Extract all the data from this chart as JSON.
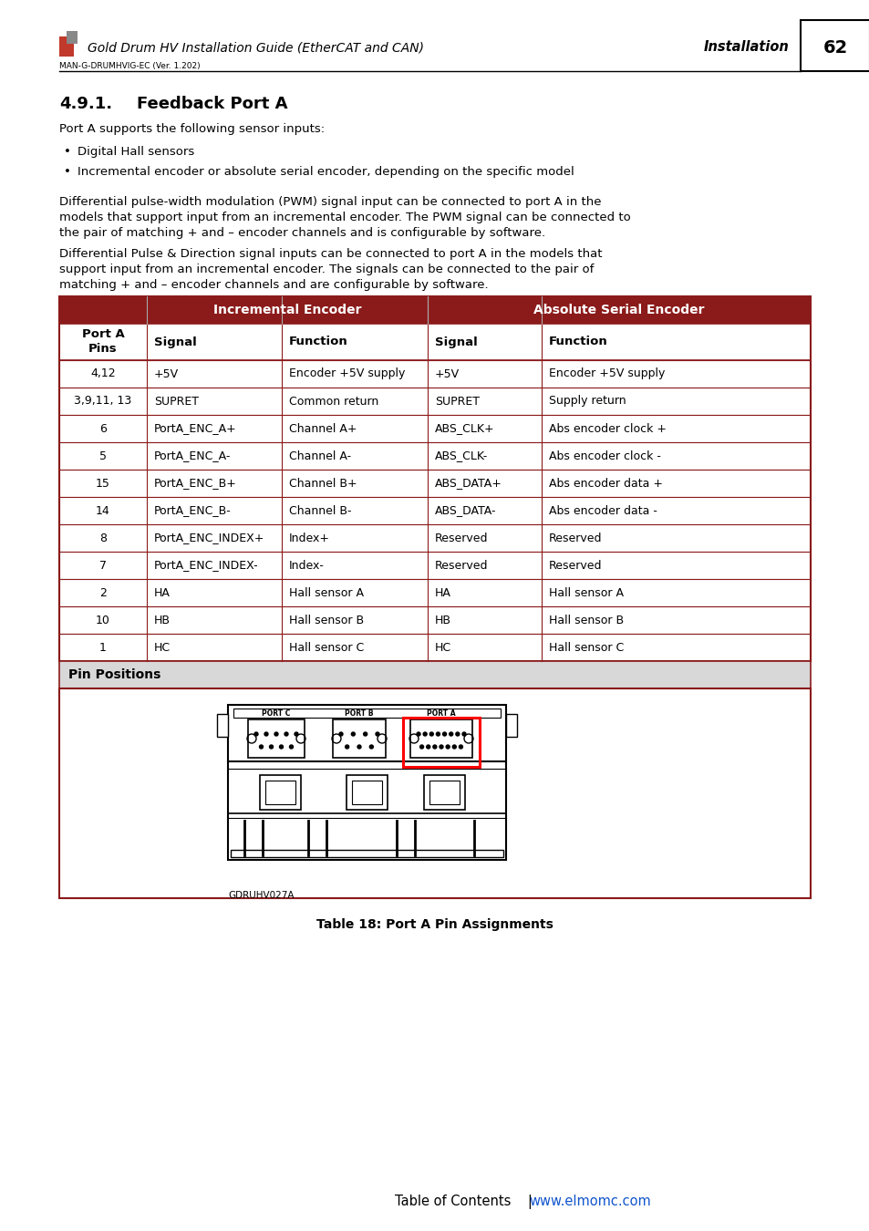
{
  "page_bg": "#ffffff",
  "header_title": "Gold Drum HV Installation Guide (EtherCAT and CAN)",
  "header_right": "Installation",
  "header_page": "62",
  "header_subtitle": "MAN-G-DRUMHVIG-EC (Ver. 1.202)",
  "section_title": "4.9.1.     Feedback Port A",
  "body_text1": "Port A supports the following sensor inputs:",
  "bullet1": "Digital Hall sensors",
  "bullet2": "Incremental encoder or absolute serial encoder, depending on the specific model",
  "para2_lines": [
    "Differential pulse-width modulation (PWM) signal input can be connected to port A in the",
    "models that support input from an incremental encoder. The PWM signal can be connected to",
    "the pair of matching + and – encoder channels and is configurable by software."
  ],
  "para3_lines": [
    "Differential Pulse & Direction signal inputs can be connected to port A in the models that",
    "support input from an incremental encoder. The signals can be connected to the pair of",
    "matching + and – encoder channels and are configurable by software."
  ],
  "table_header_bg": "#8b1a1a",
  "table_header_text": "#ffffff",
  "table_col2_header": "Incremental Encoder",
  "table_col4_header": "Absolute Serial Encoder",
  "col_headers": [
    "Port A\nPins",
    "Signal",
    "Function",
    "Signal",
    "Function"
  ],
  "table_rows": [
    [
      "4,12",
      "+5V",
      "Encoder +5V supply",
      "+5V",
      "Encoder +5V supply"
    ],
    [
      "3,9,11, 13",
      "SUPRET",
      "Common return",
      "SUPRET",
      "Supply return"
    ],
    [
      "6",
      "PortA_ENC_A+",
      "Channel A+",
      "ABS_CLK+",
      "Abs encoder clock +"
    ],
    [
      "5",
      "PortA_ENC_A-",
      "Channel A-",
      "ABS_CLK-",
      "Abs encoder clock -"
    ],
    [
      "15",
      "PortA_ENC_B+",
      "Channel B+",
      "ABS_DATA+",
      "Abs encoder data +"
    ],
    [
      "14",
      "PortA_ENC_B-",
      "Channel B-",
      "ABS_DATA-",
      "Abs encoder data -"
    ],
    [
      "8",
      "PortA_ENC_INDEX+",
      "Index+",
      "Reserved",
      "Reserved"
    ],
    [
      "7",
      "PortA_ENC_INDEX-",
      "Index-",
      "Reserved",
      "Reserved"
    ],
    [
      "2",
      "HA",
      "Hall sensor A",
      "HA",
      "Hall sensor A"
    ],
    [
      "10",
      "HB",
      "Hall sensor B",
      "HB",
      "Hall sensor B"
    ],
    [
      "1",
      "HC",
      "Hall sensor C",
      "HC",
      "Hall sensor C"
    ]
  ],
  "pin_positions_label": "Pin Positions",
  "image_label": "GDRUHV027A",
  "table_caption": "Table 18: Port A Pin Assignments",
  "footer_toc": "Table of Contents",
  "footer_url": "www.elmomc.com",
  "footer_url_color": "#1155cc",
  "table_border_color": "#8b1a1a",
  "pin_section_bg": "#d8d8d8"
}
